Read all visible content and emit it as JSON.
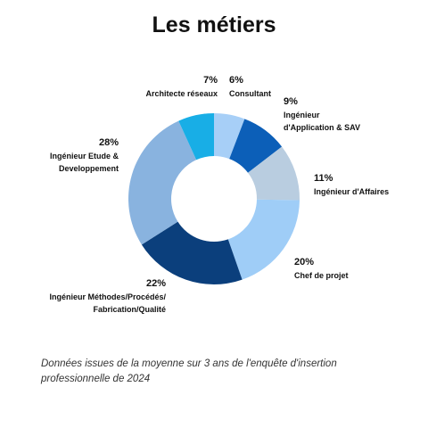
{
  "chart_data": {
    "type": "donut",
    "title": "Les métiers",
    "categories": [
      "Consultant",
      "Ingénieur\nd'Application & SAV",
      "Ingénieur d'Affaires",
      "Chef de projet",
      "Ingénieur Méthodes/Procédés/\nFabrication/Qualité",
      "Ingénieur Etude &\nDeveloppement",
      "Architecte réseaux"
    ],
    "values": [
      6,
      9,
      11,
      20,
      22,
      28,
      7
    ],
    "value_labels": [
      "6%",
      "9%",
      "11%",
      "20%",
      "22%",
      "28%",
      "7%"
    ],
    "colors": [
      "#a7cff7",
      "#0c5fb8",
      "#b9cde0",
      "#9fcdf7",
      "#0b3f7c",
      "#89b3df",
      "#18aee6"
    ],
    "note": "Données issues de la moyenne sur 3 ans de l'enquête d'insertion professionnelle de 2024"
  }
}
